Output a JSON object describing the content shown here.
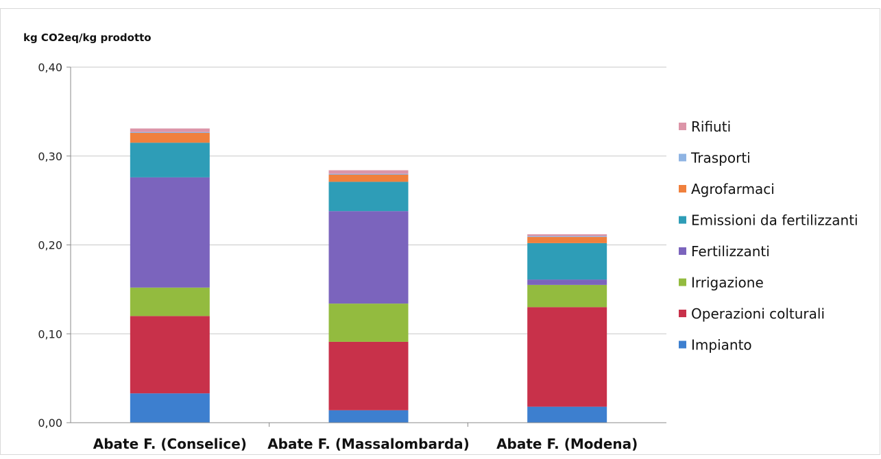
{
  "chart_data": {
    "type": "bar",
    "stacked": true,
    "ylabel": "kg CO2eq/kg prodotto",
    "ylim": [
      0,
      0.4
    ],
    "yticks": [
      "0,00",
      "0,10",
      "0,20",
      "0,30",
      "0,40"
    ],
    "grid": true,
    "legend_position": "right",
    "categories": [
      "Abate F. (Conselice)",
      "Abate F. (Massalombarda)",
      "Abate F. (Modena)"
    ],
    "series": [
      {
        "name": "Impianto",
        "color": "#3d7fcf",
        "values": [
          0.033,
          0.014,
          0.018
        ]
      },
      {
        "name": "Operazioni colturali",
        "color": "#c8314a",
        "values": [
          0.087,
          0.077,
          0.112
        ]
      },
      {
        "name": "Irrigazione",
        "color": "#93bb3f",
        "values": [
          0.032,
          0.043,
          0.025
        ]
      },
      {
        "name": "Fertilizzanti",
        "color": "#7b64bd",
        "values": [
          0.124,
          0.104,
          0.006
        ]
      },
      {
        "name": "Emissioni da fertilizzanti",
        "color": "#2e9db7",
        "values": [
          0.039,
          0.033,
          0.041
        ]
      },
      {
        "name": "Agrofarmaci",
        "color": "#f0803d",
        "values": [
          0.011,
          0.008,
          0.007
        ]
      },
      {
        "name": "Trasporti",
        "color": "#8fb4e3",
        "values": [
          0.001,
          0.001,
          0.001
        ]
      },
      {
        "name": "Rifiuti",
        "color": "#dc95a8",
        "values": [
          0.004,
          0.004,
          0.002
        ]
      }
    ]
  }
}
